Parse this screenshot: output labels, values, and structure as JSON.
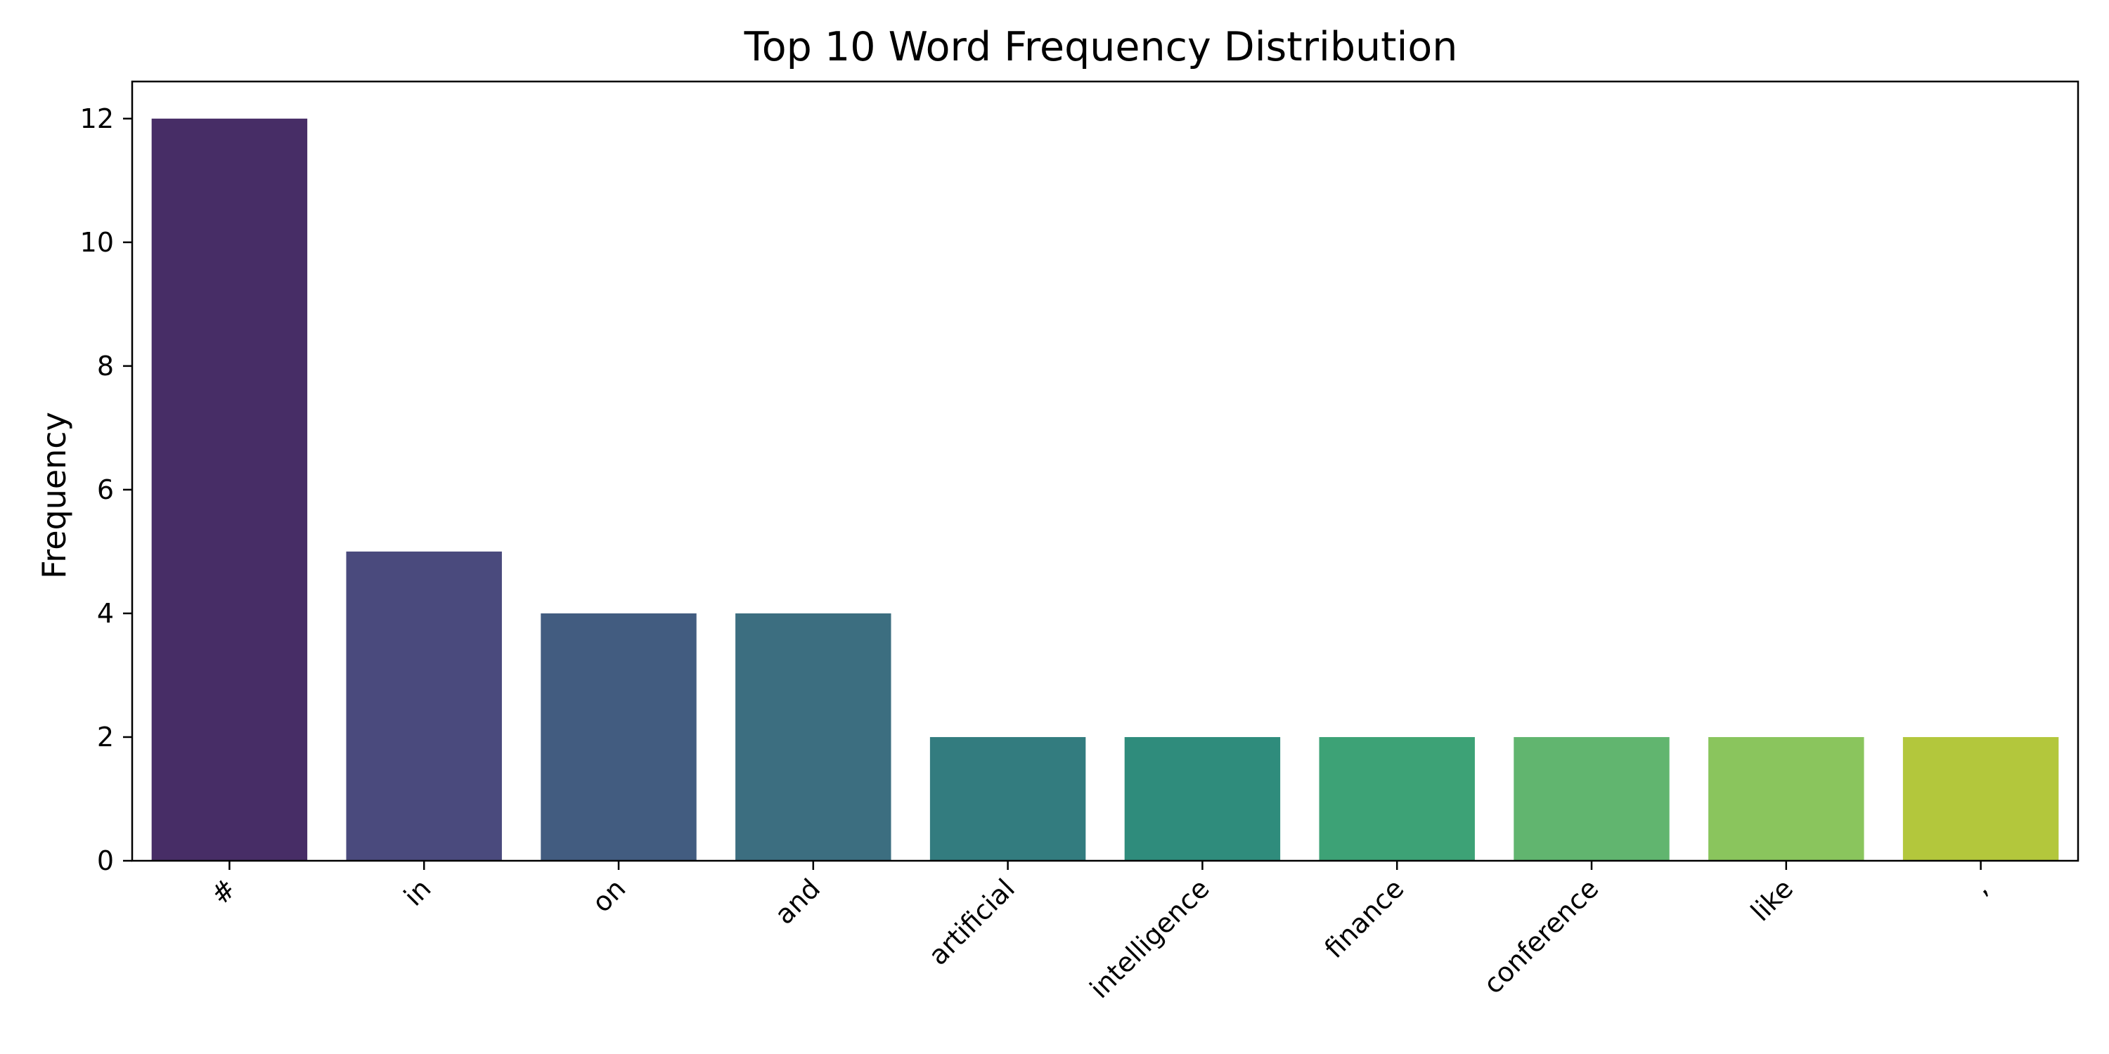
{
  "chart_data": {
    "type": "bar",
    "title": "Top 10 Word Frequency Distribution",
    "xlabel": "",
    "ylabel": "Frequency",
    "categories": [
      "#",
      "in",
      "on",
      "and",
      "artificial",
      "intelligence",
      "finance",
      "conference",
      "like",
      ","
    ],
    "values": [
      12,
      5,
      4,
      4,
      2,
      2,
      2,
      2,
      2,
      2
    ],
    "ylim": [
      0,
      12.6
    ],
    "yticks": [
      0,
      2,
      4,
      6,
      8,
      10,
      12
    ],
    "grid": false,
    "legend": "none",
    "colors": [
      "#472d66",
      "#4a4a7d",
      "#425c80",
      "#3c6e80",
      "#337c7f",
      "#2f8c7c",
      "#3da276",
      "#61b56f",
      "#8ac55d",
      "#b3c73c"
    ]
  }
}
